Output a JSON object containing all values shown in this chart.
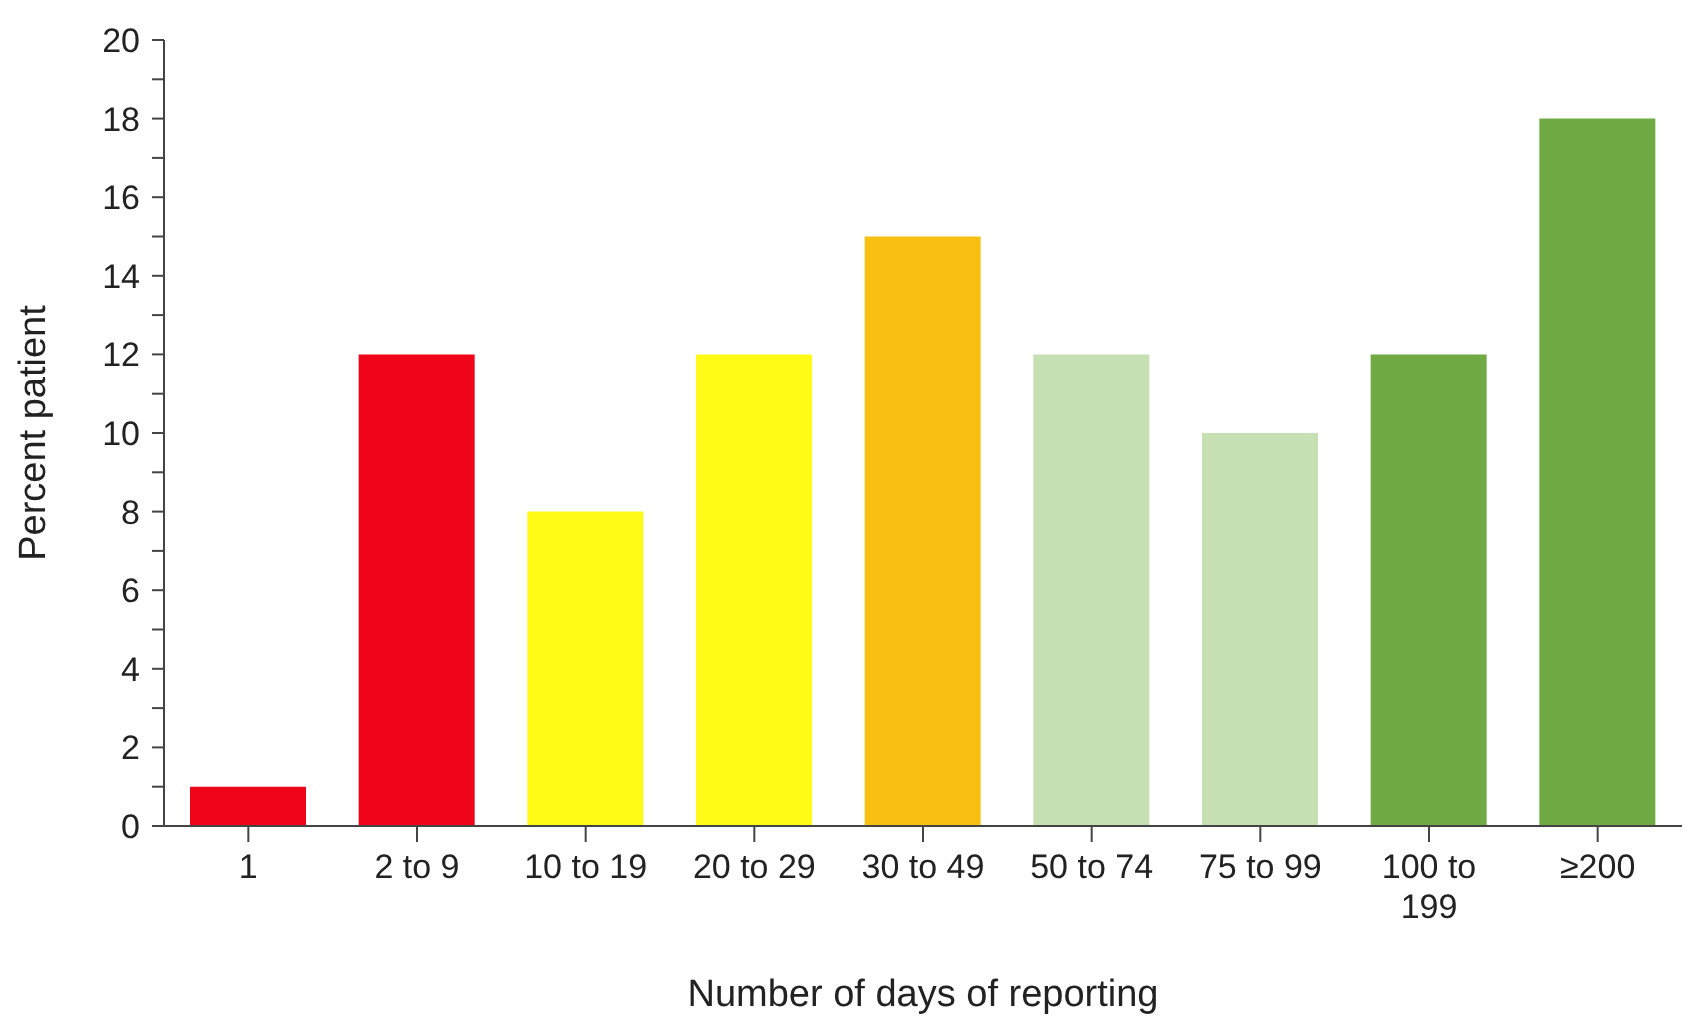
{
  "chart_data": {
    "type": "bar",
    "xlabel": "Number of days of reporting",
    "ylabel": "Percent patient",
    "categories": [
      "1",
      "2 to 9",
      "10 to 19",
      "20 to 29",
      "30 to 49",
      "50 to 74",
      "75 to 99",
      "100 to 199",
      "≥200"
    ],
    "values": [
      1,
      12,
      8,
      12,
      15,
      12,
      10,
      12,
      18
    ],
    "colors": [
      "#f0041a",
      "#f0041a",
      "#fffb17",
      "#fffb17",
      "#f8c010",
      "#c6e0b4",
      "#c6e0b4",
      "#6faa45",
      "#6faa45"
    ],
    "ylim": [
      0,
      20
    ],
    "yticks": [
      0,
      {
        "value": 1,
        "label": null
      },
      2,
      {
        "value": 3,
        "label": null
      },
      4,
      {
        "value": 5,
        "label": null
      },
      6,
      {
        "value": 7,
        "label": null
      },
      8,
      {
        "value": 9,
        "label": null
      },
      10,
      {
        "value": 11,
        "label": null
      },
      12,
      {
        "value": 13,
        "label": null
      },
      14,
      {
        "value": 15,
        "label": null
      },
      16,
      {
        "value": 17,
        "label": null
      },
      18,
      {
        "value": 19,
        "label": null
      },
      20
    ],
    "grid": false,
    "legend": false
  }
}
